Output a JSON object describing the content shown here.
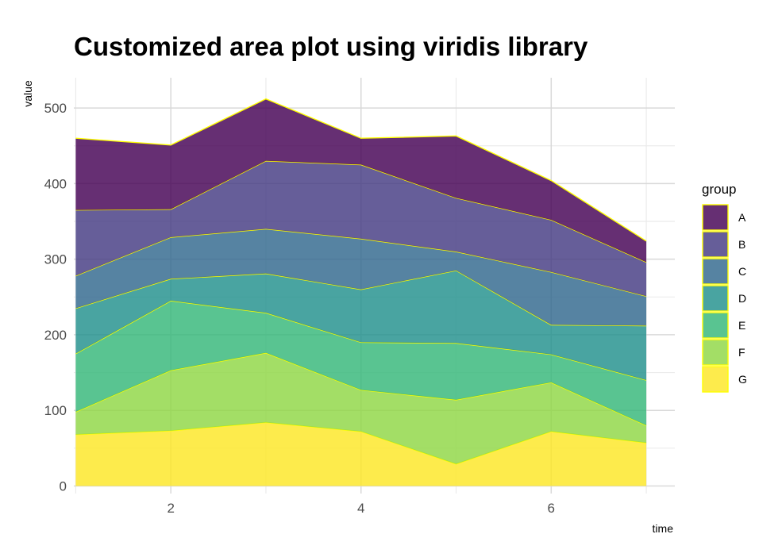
{
  "chart_data": {
    "type": "area",
    "stacked": true,
    "title": "Customized area plot using viridis library",
    "xlabel": "time",
    "ylabel": "value",
    "x": [
      1,
      2,
      3,
      4,
      5,
      6,
      7
    ],
    "xlim": [
      0.98,
      7.3
    ],
    "ylim": [
      -10,
      540
    ],
    "x_ticks": [
      2,
      4,
      6
    ],
    "x_tick_labels": [
      "2",
      "4",
      "6"
    ],
    "y_ticks": [
      0,
      100,
      200,
      300,
      400,
      500
    ],
    "y_tick_labels": [
      "0",
      "100",
      "200",
      "300",
      "400",
      "500"
    ],
    "grid": true,
    "legend": {
      "title": "group",
      "position": "right"
    },
    "outline_color": "#FFFF00",
    "series": [
      {
        "name": "A",
        "color": "#440154",
        "values": [
          95,
          85,
          82,
          35,
          82,
          52,
          28
        ]
      },
      {
        "name": "B",
        "color": "#443A83",
        "values": [
          87,
          37,
          90,
          98,
          71,
          69,
          45
        ]
      },
      {
        "name": "C",
        "color": "#31688E",
        "values": [
          43,
          55,
          59,
          67,
          25,
          70,
          39
        ]
      },
      {
        "name": "D",
        "color": "#21908C",
        "values": [
          60,
          29,
          52,
          70,
          96,
          39,
          72
        ]
      },
      {
        "name": "E",
        "color": "#35B779",
        "values": [
          77,
          92,
          53,
          63,
          75,
          37,
          60
        ]
      },
      {
        "name": "F",
        "color": "#8FD744",
        "values": [
          30,
          80,
          92,
          55,
          85,
          65,
          23
        ]
      },
      {
        "name": "G",
        "color": "#FDE725",
        "values": [
          68,
          73,
          84,
          72,
          29,
          72,
          57
        ]
      }
    ]
  }
}
